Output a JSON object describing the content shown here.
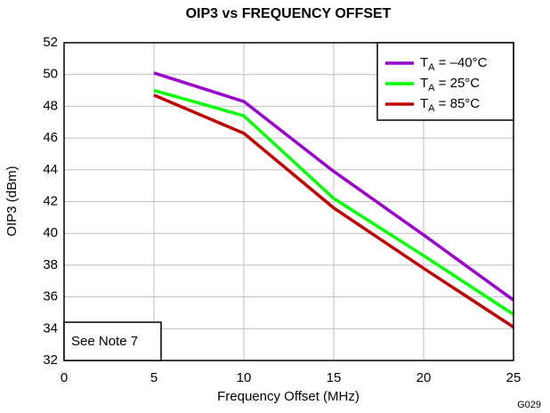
{
  "chart_data": {
    "type": "line",
    "title": "OIP3 vs FREQUENCY OFFSET",
    "x_label": "Frequency Offset (MHz)",
    "y_label": "OIP3 (dBm)",
    "annotations": [
      "See Note 7",
      "G029"
    ],
    "x": [
      5,
      10,
      15,
      20,
      25
    ],
    "series": [
      {
        "name": "TA = –40°C",
        "color": "#9900cc",
        "values": [
          50.1,
          48.3,
          43.9,
          39.9,
          35.8
        ]
      },
      {
        "name": "TA = 25°C",
        "color": "#00ff00",
        "values": [
          49.0,
          47.4,
          42.2,
          38.6,
          34.9
        ]
      },
      {
        "name": "TA = 85°C",
        "color": "#c00000",
        "values": [
          48.7,
          46.3,
          41.6,
          37.8,
          34.1
        ]
      }
    ],
    "xlim": [
      0,
      25
    ],
    "xticks": [
      0,
      5,
      10,
      15,
      20,
      25
    ],
    "ylim": [
      32,
      52
    ],
    "yticks": [
      32,
      34,
      36,
      38,
      40,
      42,
      44,
      46,
      48,
      50,
      52
    ],
    "grid": true,
    "legend": "upper-right"
  }
}
